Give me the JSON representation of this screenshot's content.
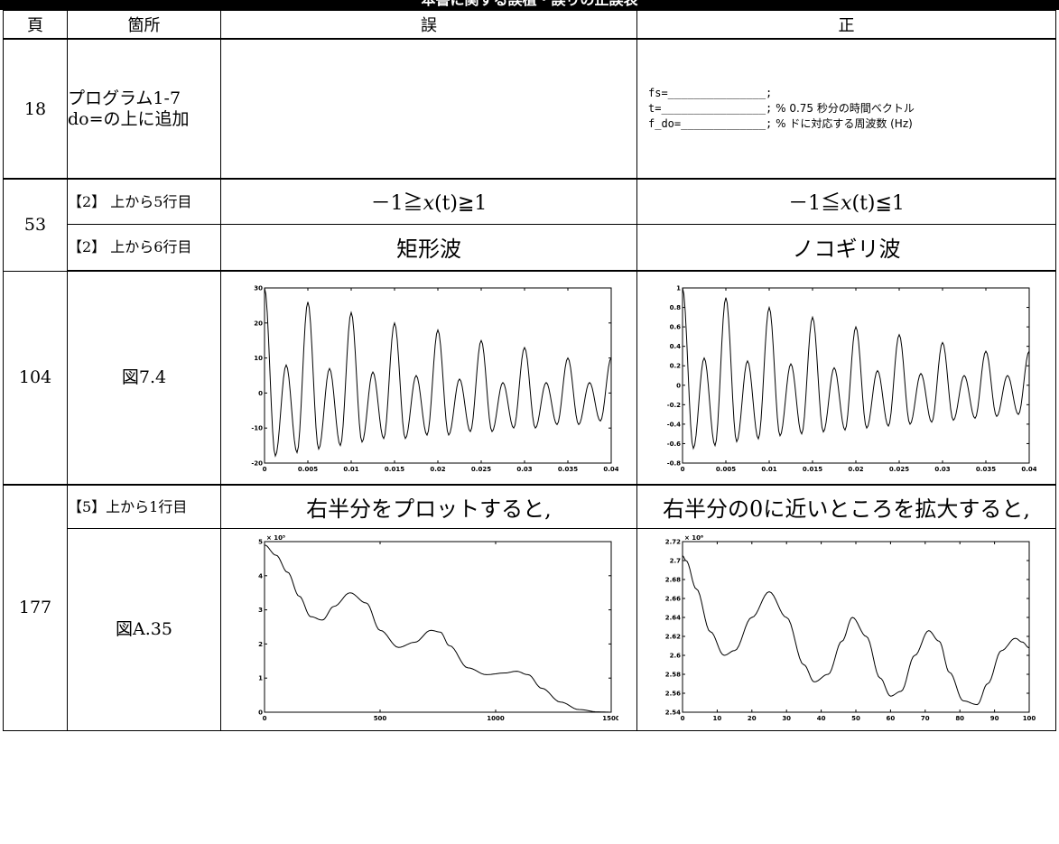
{
  "headers": {
    "page": "頁",
    "location": "箇所",
    "wrong": "誤",
    "right": "正"
  },
  "rows": {
    "r18": {
      "page": "18",
      "loc_line1": "プログラム1-7",
      "loc_line2": "do=の上に追加",
      "wrong": "",
      "code": [
        {
          "code": "fs=_______________;",
          "comment": ""
        },
        {
          "code": "t=________________;",
          "comment": " % 0.75 秒分の時間ベクトル"
        },
        {
          "code": "f_do=_____________;",
          "comment": " % ドに対応する周波数 (Hz)"
        }
      ]
    },
    "r53": {
      "page": "53",
      "a": {
        "loc": "【2】 上から5行目",
        "wrong_pre": "－1≧",
        "wrong_var": "x",
        "wrong_post": "(t)≧1",
        "right_pre": "－1≦",
        "right_var": "x",
        "right_post": "(t)≦1"
      },
      "b": {
        "loc": "【2】 上から6行目",
        "wrong": "矩形波",
        "right": "ノコギリ波"
      }
    },
    "r104": {
      "page": "104",
      "loc": "図7.4"
    },
    "r177": {
      "page": "177",
      "a": {
        "loc": "【5】上から1行目",
        "wrong": "右半分をプロットすると,",
        "right": "右半分の0に近いところを拡大すると,"
      },
      "b": {
        "loc": "図A.35"
      }
    }
  },
  "chart_data": [
    {
      "type": "line",
      "id": "fig74-wrong",
      "xlim": [
        0,
        0.04
      ],
      "ylim": [
        -20,
        30
      ],
      "xticks": [
        "0",
        "0.005",
        "0.01",
        "0.015",
        "0.02",
        "0.025",
        "0.03",
        "0.035",
        "0.04"
      ],
      "yticks": [
        "-20",
        "-10",
        "0",
        "10",
        "20",
        "30"
      ],
      "series": [
        {
          "x": [
            0,
            0.00125,
            0.0025,
            0.00375,
            0.005,
            0.00625,
            0.0075,
            0.00875,
            0.01,
            0.01125,
            0.0125,
            0.01375,
            0.015,
            0.01625,
            0.0175,
            0.01875,
            0.02,
            0.02125,
            0.0225,
            0.02375,
            0.025,
            0.02625,
            0.0275,
            0.02875,
            0.03,
            0.03125,
            0.0325,
            0.03375,
            0.035,
            0.03625,
            0.0375,
            0.03875,
            0.04
          ],
          "y": [
            30,
            -18,
            8,
            -17,
            26,
            -16,
            7,
            -15,
            23,
            -14,
            6,
            -13,
            20,
            -13,
            5,
            -12,
            18,
            -12,
            4,
            -11,
            15,
            -11,
            3,
            -10,
            13,
            -10,
            3,
            -9,
            10,
            -9,
            3,
            -8,
            10
          ]
        }
      ]
    },
    {
      "type": "line",
      "id": "fig74-right",
      "xlim": [
        0,
        0.04
      ],
      "ylim": [
        -0.8,
        1
      ],
      "xticks": [
        "0",
        "0.005",
        "0.01",
        "0.015",
        "0.02",
        "0.025",
        "0.03",
        "0.035",
        "0.04"
      ],
      "yticks": [
        "-0.8",
        "-0.6",
        "-0.4",
        "-0.2",
        "0",
        "0.2",
        "0.4",
        "0.6",
        "0.8",
        "1"
      ],
      "series": [
        {
          "x": [
            0,
            0.00125,
            0.0025,
            0.00375,
            0.005,
            0.00625,
            0.0075,
            0.00875,
            0.01,
            0.01125,
            0.0125,
            0.01375,
            0.015,
            0.01625,
            0.0175,
            0.01875,
            0.02,
            0.02125,
            0.0225,
            0.02375,
            0.025,
            0.02625,
            0.0275,
            0.02875,
            0.03,
            0.03125,
            0.0325,
            0.03375,
            0.035,
            0.03625,
            0.0375,
            0.03875,
            0.04
          ],
          "y": [
            1,
            -0.65,
            0.28,
            -0.62,
            0.9,
            -0.58,
            0.25,
            -0.55,
            0.8,
            -0.52,
            0.22,
            -0.5,
            0.7,
            -0.48,
            0.18,
            -0.46,
            0.6,
            -0.44,
            0.15,
            -0.42,
            0.52,
            -0.4,
            0.12,
            -0.38,
            0.44,
            -0.36,
            0.1,
            -0.34,
            0.35,
            -0.32,
            0.1,
            -0.3,
            0.35
          ]
        }
      ]
    },
    {
      "type": "line",
      "id": "figA35-wrong",
      "xlim": [
        0,
        1500
      ],
      "ylim": [
        0,
        500000
      ],
      "yexp": "× 10⁵",
      "xticks": [
        "0",
        "500",
        "1000",
        "1500"
      ],
      "yticks": [
        "0",
        "1",
        "2",
        "3",
        "4",
        "5"
      ],
      "series": [
        {
          "x": [
            0,
            50,
            100,
            150,
            200,
            250,
            300,
            370,
            440,
            500,
            580,
            650,
            720,
            760,
            800,
            880,
            960,
            1040,
            1090,
            1140,
            1200,
            1280,
            1360,
            1440,
            1500
          ],
          "y": [
            490000,
            460000,
            410000,
            340000,
            280000,
            270000,
            310000,
            350000,
            320000,
            240000,
            190000,
            205000,
            240000,
            235000,
            195000,
            130000,
            110000,
            115000,
            120000,
            110000,
            70000,
            30000,
            8000,
            1000,
            0
          ]
        }
      ]
    },
    {
      "type": "line",
      "id": "figA35-right",
      "xlim": [
        0,
        100
      ],
      "ylim": [
        2540000,
        2720000
      ],
      "yexp": "× 10⁶",
      "xticks": [
        "0",
        "10",
        "20",
        "30",
        "40",
        "50",
        "60",
        "70",
        "80",
        "90",
        "100"
      ],
      "yticks": [
        "2.54",
        "2.56",
        "2.58",
        "2.6",
        "2.62",
        "2.64",
        "2.66",
        "2.68",
        "2.7",
        "2.72"
      ],
      "series": [
        {
          "x": [
            0,
            1,
            4,
            8,
            12,
            15,
            20,
            25,
            30,
            35,
            38,
            42,
            46,
            49,
            53,
            57,
            60,
            63,
            67,
            71,
            74,
            77,
            81,
            85,
            88,
            92,
            96,
            98,
            100
          ],
          "y": [
            2705000,
            2700000,
            2670000,
            2625000,
            2600000,
            2605000,
            2640000,
            2667000,
            2640000,
            2590000,
            2572000,
            2580000,
            2615000,
            2640000,
            2620000,
            2576000,
            2557000,
            2562000,
            2600000,
            2626000,
            2615000,
            2582000,
            2552000,
            2548000,
            2570000,
            2605000,
            2618000,
            2614000,
            2608000
          ]
        }
      ]
    }
  ]
}
